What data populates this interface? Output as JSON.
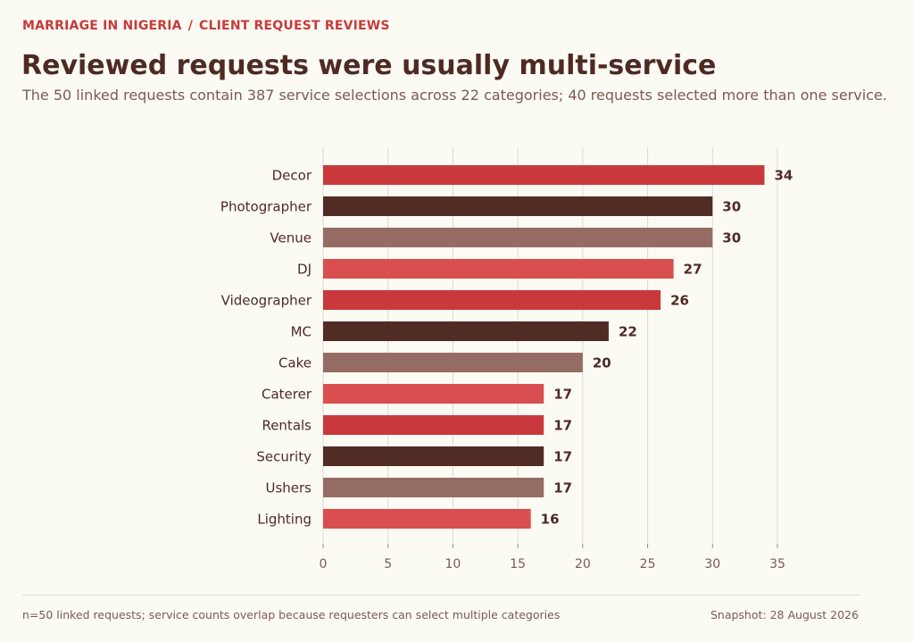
{
  "header": {
    "eyebrow_left": "MARRIAGE IN NIGERIA",
    "eyebrow_sep": "/",
    "eyebrow_right": "CLIENT REQUEST REVIEWS",
    "title": "Reviewed requests were usually multi-service",
    "subtitle": "The 50 linked requests contain 387 service selections across 22 categories; 40 requests selected more than one service."
  },
  "footer": {
    "note": "n=50 linked requests; service counts overlap because requesters can select multiple categories",
    "snapshot": "Snapshot: 28 August 2026"
  },
  "chart_data": {
    "type": "bar",
    "orientation": "horizontal",
    "categories": [
      "Decor",
      "Photographer",
      "Venue",
      "DJ",
      "Videographer",
      "MC",
      "Cake",
      "Caterer",
      "Rentals",
      "Security",
      "Ushers",
      "Lighting"
    ],
    "values": [
      34,
      30,
      30,
      27,
      26,
      22,
      20,
      17,
      17,
      17,
      17,
      16
    ],
    "bar_colors": [
      "#c9393b",
      "#512c25",
      "#946c63",
      "#d94f4f",
      "#c9393b",
      "#512c25",
      "#946c63",
      "#d94f4f",
      "#c9393b",
      "#512c25",
      "#946c63",
      "#d94f4f"
    ],
    "xlim": [
      0,
      35
    ],
    "xticks": [
      0,
      5,
      10,
      15,
      20,
      25,
      30,
      35
    ],
    "grid": true,
    "data_labels": true
  },
  "colors": {
    "accent": "#c9393b",
    "text": "#4f2a24",
    "muted": "#7b5a52",
    "grid": "#dcd9d0",
    "background": "#fbfbf4"
  }
}
